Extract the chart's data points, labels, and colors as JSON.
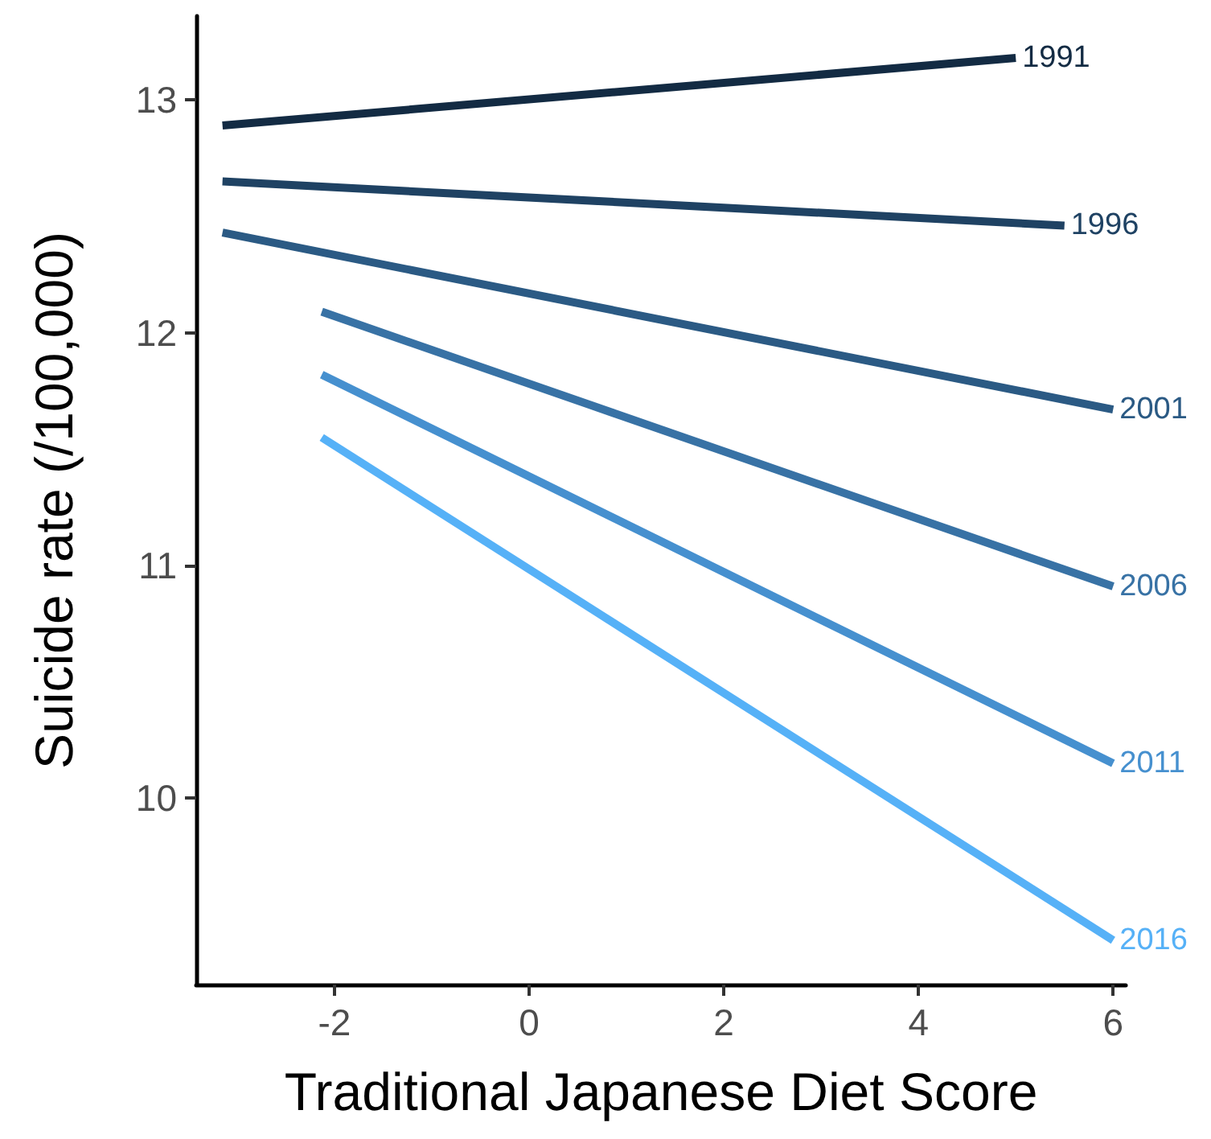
{
  "chart_data": {
    "type": "line",
    "xlabel": "Traditional Japanese Diet Score",
    "ylabel": "Suicide rate (/100,000)",
    "xlim": [
      -3.42,
      6.13
    ],
    "xticks": [
      -2,
      0,
      2,
      4,
      6
    ],
    "ylim": [
      9.2,
      13.36
    ],
    "yticks": [
      10,
      11,
      12,
      13
    ],
    "grid": false,
    "legend": false,
    "marker": "none",
    "line_style": "solid",
    "series": [
      {
        "name": "1991",
        "color": "#132b43",
        "x": [
          -3.15,
          5.0
        ],
        "values": [
          12.89,
          13.18
        ]
      },
      {
        "name": "1996",
        "color": "#1f4263",
        "x": [
          -3.15,
          5.5
        ],
        "values": [
          12.65,
          12.46
        ]
      },
      {
        "name": "2001",
        "color": "#2b5a84",
        "x": [
          -3.15,
          6
        ],
        "values": [
          12.43,
          11.67
        ]
      },
      {
        "name": "2006",
        "color": "#3872a5",
        "x": [
          -2.13,
          6
        ],
        "values": [
          12.09,
          10.91
        ]
      },
      {
        "name": "2011",
        "color": "#4690cf",
        "x": [
          -2.13,
          6
        ],
        "values": [
          11.82,
          10.15
        ]
      },
      {
        "name": "2016",
        "color": "#56b1f7",
        "x": [
          -2.13,
          6
        ],
        "values": [
          11.55,
          9.39
        ]
      }
    ]
  }
}
